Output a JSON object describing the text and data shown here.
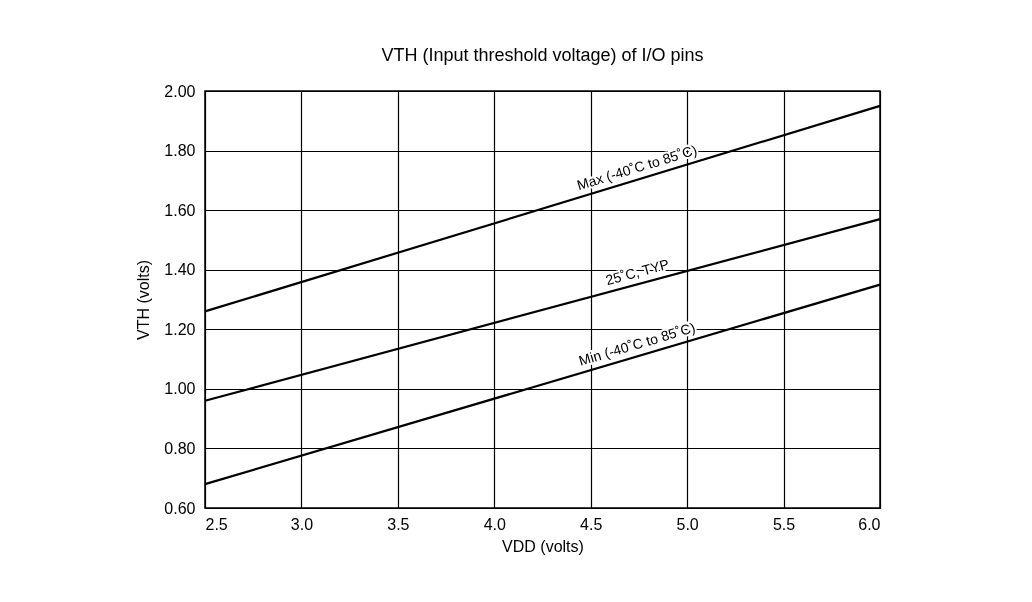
{
  "chart_data": {
    "type": "line",
    "title": "VTH (Input threshold voltage) of I/O pins",
    "xlabel": "VDD (volts)",
    "ylabel": "VTH (volts)",
    "x": [
      2.5,
      6.0
    ],
    "series": [
      {
        "name": "Max (-40˚C to 85˚C)",
        "color": "#000000",
        "values": [
          1.26,
          1.95
        ]
      },
      {
        "name": "25˚C, TYP",
        "color": "#000000",
        "values": [
          0.96,
          1.57
        ]
      },
      {
        "name": "Min (-40˚C to 85˚C)",
        "color": "#000000",
        "values": [
          0.68,
          1.35
        ]
      }
    ],
    "xlim": [
      2.5,
      6.0
    ],
    "xticks": [
      {
        "value": 2.5,
        "label": "2.5"
      },
      {
        "value": 3,
        "label": "3.0"
      },
      {
        "value": 3.5,
        "label": "3.5"
      },
      {
        "value": 4,
        "label": "4.0"
      },
      {
        "value": 4.5,
        "label": "4.5"
      },
      {
        "value": 5,
        "label": "5.0"
      },
      {
        "value": 5.5,
        "label": "5.5"
      },
      {
        "value": 6,
        "label": "6.0"
      }
    ],
    "ylim": [
      0.6,
      2.0
    ],
    "yticks": [
      {
        "value": 0.6,
        "label": "0.60"
      },
      {
        "value": 0.8,
        "label": "0.80"
      },
      {
        "value": 1.0,
        "label": "1.00"
      },
      {
        "value": 1.2,
        "label": "1.20"
      },
      {
        "value": 1.4,
        "label": "1.40"
      },
      {
        "value": 1.6,
        "label": "1.60"
      },
      {
        "value": 1.8,
        "label": "1.80"
      },
      {
        "value": 2.0,
        "label": "2.00"
      }
    ],
    "grid": true,
    "marker": "none",
    "line_style": "solid"
  }
}
